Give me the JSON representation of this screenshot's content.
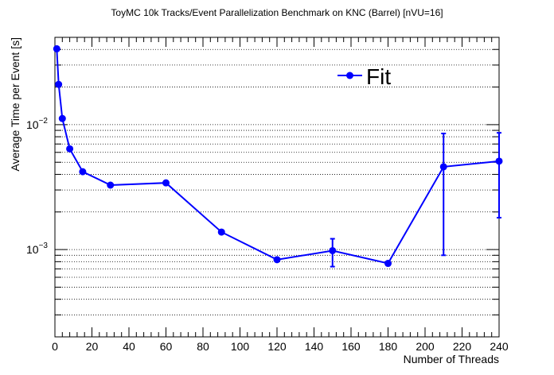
{
  "chart_data": {
    "type": "line",
    "title": "ToyMC 10k Tracks/Event Parallelization Benchmark on KNC (Barrel) [nVU=16]",
    "xlabel": "Number of Threads",
    "ylabel": "Average Time per Event [s]",
    "xlim": [
      0,
      240
    ],
    "ylim": [
      0.0002,
      0.05
    ],
    "yscale": "log",
    "grid": "y-only, dotted",
    "legend_position": "top-right",
    "color": "#0000ff",
    "x_ticks": [
      0,
      20,
      40,
      60,
      80,
      100,
      120,
      140,
      160,
      180,
      200,
      220,
      240
    ],
    "x_tick_labels": [
      "0",
      "20",
      "40",
      "60",
      "80",
      "100",
      "120",
      "140",
      "160",
      "180",
      "200",
      "220",
      "240"
    ],
    "y_major_ticks": [
      {
        "value": 0.01,
        "base": "10",
        "exp": "−2"
      },
      {
        "value": 0.001,
        "base": "10",
        "exp": "−3"
      }
    ],
    "series": [
      {
        "name": "Fit",
        "x": [
          1,
          2,
          4,
          8,
          15,
          30,
          60,
          90,
          120,
          150,
          180,
          210,
          240
        ],
        "y": [
          0.0405,
          0.021,
          0.0112,
          0.0064,
          0.0042,
          0.00328,
          0.00342,
          0.00138,
          0.00083,
          0.00098,
          0.000775,
          0.0046,
          0.0051
        ],
        "yerr_low": [
          0,
          0,
          0,
          0,
          0,
          0,
          0,
          0,
          0,
          0.00025,
          0,
          0.0037,
          0.0033
        ],
        "yerr_high": [
          0,
          0,
          0,
          0,
          0,
          0,
          0,
          0,
          0,
          0.00024,
          0,
          0.0039,
          0.0035
        ]
      }
    ]
  }
}
